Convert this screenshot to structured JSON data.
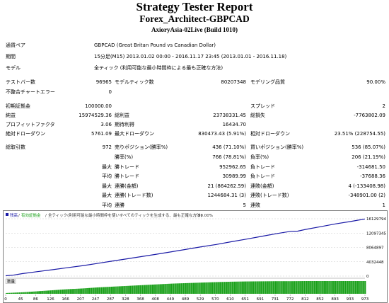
{
  "report": {
    "title": "Strategy Tester Report",
    "subtitle": "Forex_Architect-GBPCAD",
    "server": "AxioryAsia-02Live (Build 1010)"
  },
  "info": {
    "symbol_label": "通貨ペア",
    "symbol": "GBPCAD (Great Britan Pound vs Canadian Dollar)",
    "period_label": "期間",
    "period": "15分足(M15) 2013.01.02 00:00 - 2016.11.17 23:45 (2013.01.01 - 2016.11.18)",
    "model_label": "モデル",
    "model": "全ティック (利用可能な最小時間枠による最も正確な方法)"
  },
  "stats": {
    "bars_label": "テストバー数",
    "bars": "96965",
    "ticks_label": "モデルティック数",
    "ticks": "80207348",
    "quality_label": "モデリング品質",
    "quality": "90.00%",
    "errors_label": "不整合チャートエラー",
    "errors": "0",
    "deposit_label": "初期証拠金",
    "deposit": "100000.00",
    "spread_label": "スプレッド",
    "spread": "2",
    "netprofit_label": "純益",
    "netprofit": "15974529.36",
    "grossprofit_label": "総利益",
    "grossprofit": "23738331.45",
    "grossloss_label": "総損失",
    "grossloss": "-7763802.09",
    "pf_label": "プロフィットファクタ",
    "pf": "3.06",
    "payoff_label": "期待利得",
    "payoff": "16434.70",
    "absdd_label": "絶対ドローダウン",
    "absdd": "5761.09",
    "maxdd_label": "最大ドローダウン",
    "maxdd": "830473.43 (5.91%)",
    "reldd_label": "相対ドローダウン",
    "reldd": "23.51% (228754.55)",
    "trades_label": "総取引数",
    "trades": "972",
    "short_label": "売りポジション(勝率%)",
    "short": "436 (71.10%)",
    "long_label": "買いポジション(勝率%)",
    "long": "536 (85.07%)",
    "win_label": "勝率(%)",
    "win": "766 (78.81%)",
    "loss_label": "負率(%)",
    "loss": "206 (21.19%)",
    "max_label": "最大",
    "maxwin_label": "勝トレード",
    "maxwin": "952962.65",
    "maxloss_label": "負トレード",
    "maxloss": "-314681.50",
    "avg_label": "平均",
    "avgwin_label": "勝トレード",
    "avgwin": "30989.99",
    "avgloss_label": "負トレード",
    "avgloss": "-37688.36",
    "max2_label": "最大",
    "conswin_label": "連勝(金額)",
    "conswin": "21 (864262.59)",
    "consloss_label": "連敗(金額)",
    "consloss": "4 (-133408.98)",
    "max3_label": "最大",
    "consprofit_label": "連勝(トレード数)",
    "consprofit": "1244684.31 (3)",
    "conslossn_label": "連敗(トレード数)",
    "conslossn": "-348901.00 (2)",
    "avg2_label": "平均",
    "avgcw_label": "連勝",
    "avgcw": "5",
    "avgcl_label": "連敗",
    "avgcl": "1"
  },
  "chart": {
    "legend_balance": "残高",
    "legend_equity": "有効証拠金",
    "legend_model": "全ティック(利用可能な最小時間枠を使いすべてのティックを生成する、最も正確な方法)",
    "legend_quality": "90.00%",
    "volume_label": "数量",
    "colors": {
      "balance": "#1a1aa6",
      "volume": "#19a019",
      "grid": "#c0c0c0"
    }
  },
  "chart_data": {
    "type": "line",
    "y_tick_labels": [
      "16129794",
      "12097345",
      "8064897",
      "4032448",
      "0"
    ],
    "x_tick_labels": [
      "0",
      "45",
      "86",
      "126",
      "166",
      "207",
      "247",
      "287",
      "328",
      "368",
      "408",
      "449",
      "489",
      "529",
      "570",
      "610",
      "651",
      "691",
      "731",
      "772",
      "812",
      "852",
      "893",
      "933",
      "973"
    ],
    "ylim": [
      0,
      16129794
    ],
    "xlim": [
      0,
      972
    ],
    "balance": {
      "x": [
        0,
        20,
        45,
        86,
        126,
        166,
        207,
        247,
        287,
        328,
        368,
        408,
        449,
        489,
        529,
        570,
        610,
        651,
        691,
        731,
        772,
        790,
        812,
        852,
        893,
        933,
        972
      ],
      "y": [
        100000,
        250000,
        700000,
        1250000,
        1800000,
        2350000,
        2900000,
        3550000,
        4200000,
        4850000,
        5500000,
        6150000,
        6850000,
        7550000,
        8250000,
        8900000,
        9650000,
        10400000,
        11150000,
        11900000,
        12600000,
        12650000,
        13150000,
        13900000,
        14700000,
        15350000,
        16080000
      ]
    },
    "volume": {
      "type": "bar",
      "note_levels": "relative trade volume per trade index",
      "x": [
        0,
        45,
        86,
        126,
        166,
        207,
        247,
        287,
        328,
        368,
        408,
        449,
        489,
        529,
        570,
        610,
        651,
        691,
        731,
        772,
        812,
        852,
        893,
        933,
        972
      ],
      "values": [
        0.06,
        0.12,
        0.2,
        0.28,
        0.36,
        0.42,
        0.5,
        0.56,
        0.62,
        0.68,
        0.74,
        0.8,
        0.84,
        0.88,
        0.92,
        0.95,
        0.97,
        0.98,
        0.99,
        0.99,
        1.0,
        1.0,
        1.0,
        1.0,
        1.0
      ]
    }
  }
}
